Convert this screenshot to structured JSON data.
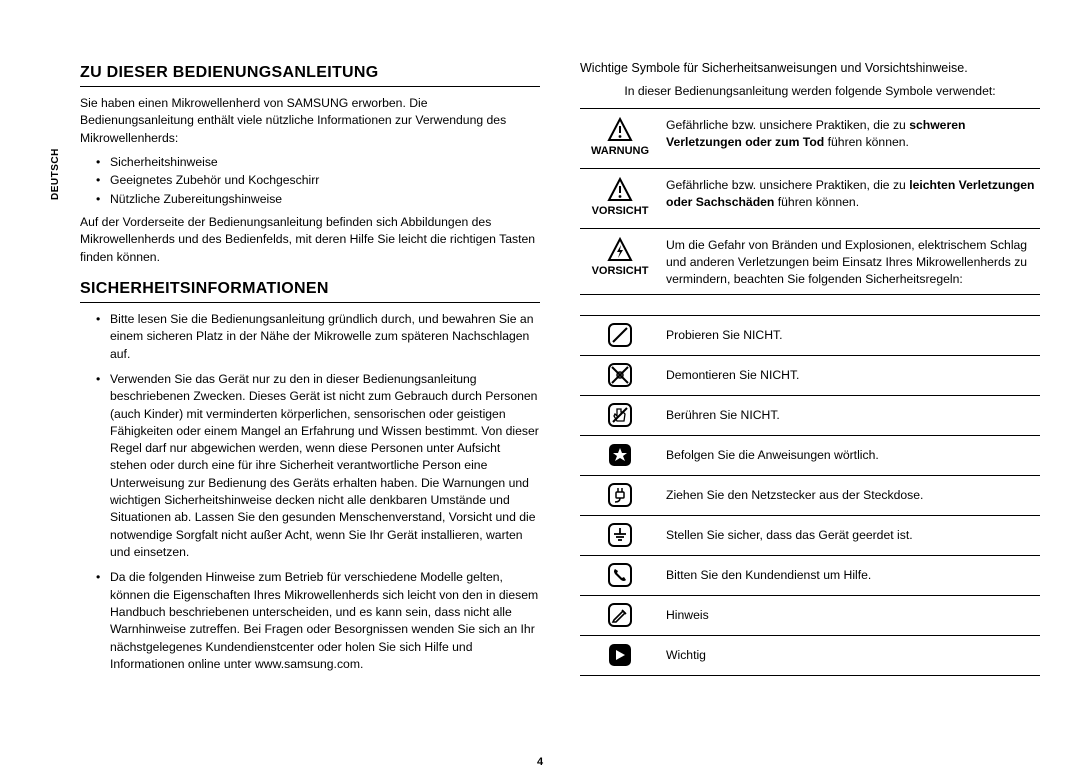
{
  "side_tab": "DEUTSCH",
  "page_number": "4",
  "left": {
    "h1": "ZU DIESER BEDIENUNGSANLEITUNG",
    "p1": "Sie haben einen Mikrowellenherd von SAMSUNG erworben. Die Bedienungsanleitung enthält viele nützliche Informationen zur Verwendung des Mikrowellenherds:",
    "list1": [
      "Sicherheitshinweise",
      "Geeignetes Zubehör und Kochgeschirr",
      "Nützliche Zubereitungshinweise"
    ],
    "p2": "Auf der Vorderseite der Bedienungsanleitung befinden sich Abbildungen des Mikrowellenherds und des Bedienfelds, mit deren Hilfe Sie leicht die richtigen Tasten finden können.",
    "h2": "SICHERHEITSINFORMATIONEN",
    "list2": [
      "Bitte lesen Sie die Bedienungsanleitung gründlich durch, und bewahren Sie an einem sicheren Platz in der Nähe der Mikrowelle zum späteren Nachschlagen auf.",
      "Verwenden Sie das Gerät nur zu den in dieser Bedienungsanleitung beschriebenen Zwecken. Dieses Gerät ist nicht zum Gebrauch durch Personen (auch Kinder) mit verminderten körperlichen, sensorischen oder geistigen Fähigkeiten oder einem Mangel an Erfahrung und Wissen bestimmt. Von dieser Regel darf nur abgewichen werden, wenn diese Personen unter Aufsicht stehen oder durch eine für ihre Sicherheit verantwortliche Person eine Unterweisung zur Bedienung des Geräts erhalten haben. Die Warnungen und wichtigen Sicherheitshinweise decken nicht alle denkbaren Umstände und Situationen ab. Lassen Sie den gesunden Menschenverstand, Vorsicht und die notwendige Sorgfalt nicht außer Acht, wenn Sie Ihr Gerät installieren, warten und einsetzen.",
      "Da die folgenden Hinweise zum Betrieb für verschiedene Modelle gelten, können die Eigenschaften Ihres Mikrowellenherds sich leicht von den in diesem Handbuch beschriebenen unterscheiden, und es kann sein, dass nicht alle Warnhinweise zutreffen. Bei Fragen oder Besorgnissen wenden Sie sich an Ihr nächstgelegenes Kundendienstcenter oder holen Sie sich Hilfe und Informationen online unter www.samsung.com."
    ]
  },
  "right": {
    "sub_head": "Wichtige Symbole für Sicherheitsanweisungen und Vorsichtshinweise.",
    "intro": "In dieser Bedienungsanleitung werden folgende Symbole verwendet:",
    "warn_rows": [
      {
        "icon": "warning-triangle",
        "label": "WARNUNG",
        "text_parts": [
          {
            "t": "Gefährliche bzw. unsichere Praktiken, die zu ",
            "b": false
          },
          {
            "t": "schweren Verletzungen oder zum Tod",
            "b": true
          },
          {
            "t": " führen können.",
            "b": false
          }
        ]
      },
      {
        "icon": "warning-triangle",
        "label": "VORSICHT",
        "text_parts": [
          {
            "t": "Gefährliche bzw. unsichere Praktiken, die zu ",
            "b": false
          },
          {
            "t": "leichten Verletzungen oder Sachschäden",
            "b": true
          },
          {
            "t": " führen können.",
            "b": false
          }
        ]
      },
      {
        "icon": "warning-triangle-bolt",
        "label": "VORSICHT",
        "text_parts": [
          {
            "t": "Um die Gefahr von Bränden und Explosionen, elektrischem Schlag und anderen Verletzungen beim Einsatz Ihres Mikrowellenherds zu vermindern, beachten Sie folgenden Sicherheitsregeln:",
            "b": false
          }
        ]
      }
    ],
    "icon_rows": [
      {
        "icon": "no-try",
        "text": "Probieren Sie NICHT."
      },
      {
        "icon": "no-disassemble",
        "text": "Demontieren Sie NICHT."
      },
      {
        "icon": "no-touch",
        "text": "Berühren Sie NICHT."
      },
      {
        "icon": "follow",
        "text": "Befolgen Sie die Anweisungen wörtlich."
      },
      {
        "icon": "unplug",
        "text": "Ziehen Sie den Netzstecker aus der Steckdose."
      },
      {
        "icon": "ground",
        "text": "Stellen Sie sicher, dass das Gerät geerdet ist."
      },
      {
        "icon": "service",
        "text": "Bitten Sie den Kundendienst um Hilfe."
      },
      {
        "icon": "note",
        "text": "Hinweis"
      },
      {
        "icon": "important",
        "text": "Wichtig"
      }
    ]
  },
  "style": {
    "page_bg": "#ffffff",
    "text_color": "#000000",
    "heading_fontsize": 16,
    "body_fontsize": 12.2,
    "line_color": "#000000",
    "icon_stroke": "#000000",
    "icon_fill_dark": "#000000",
    "icon_size": 26
  }
}
